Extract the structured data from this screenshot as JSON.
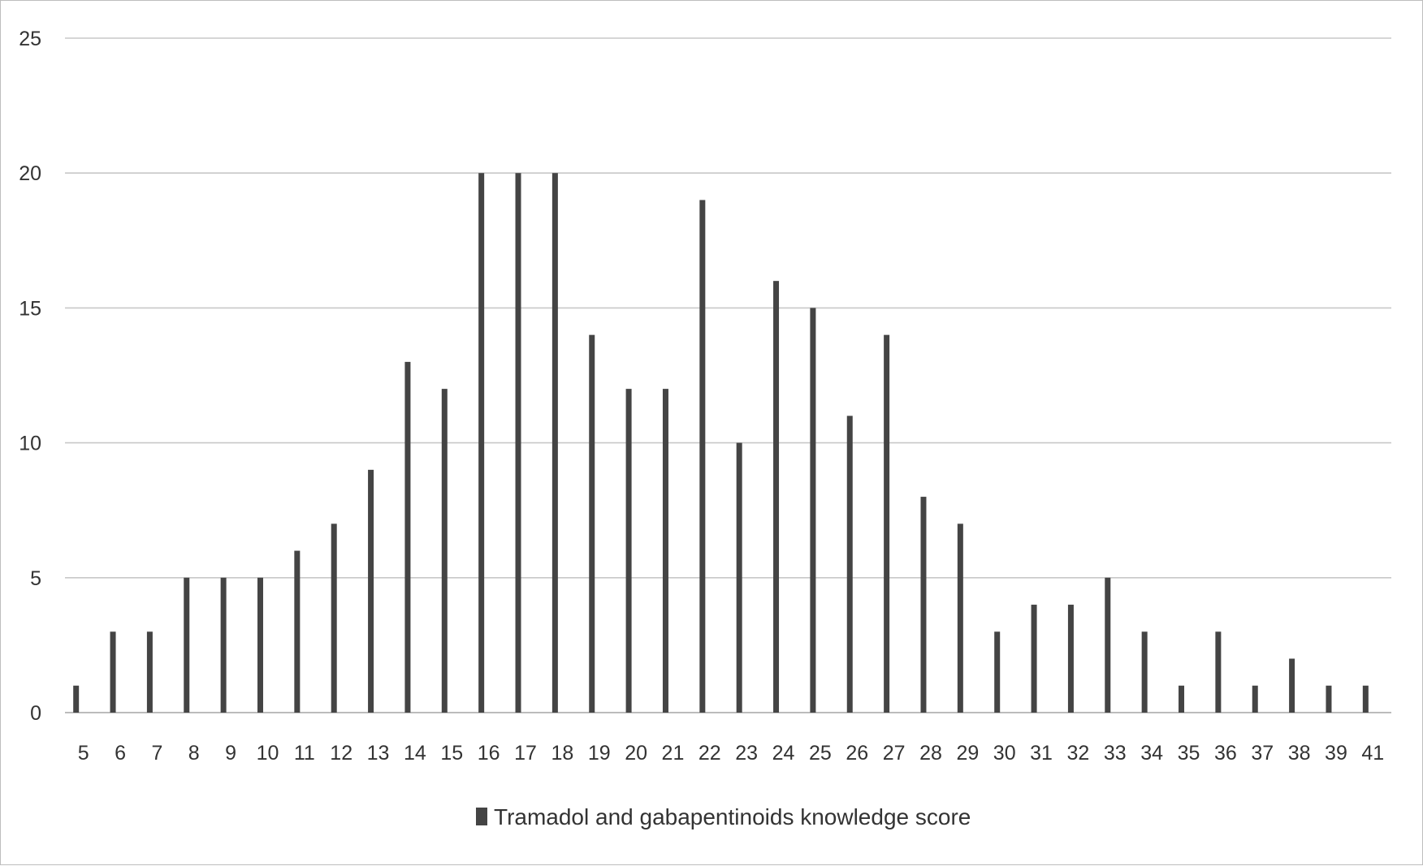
{
  "chart_data": {
    "type": "bar",
    "categories": [
      "5",
      "6",
      "7",
      "8",
      "9",
      "10",
      "11",
      "12",
      "13",
      "14",
      "15",
      "16",
      "17",
      "18",
      "19",
      "20",
      "21",
      "22",
      "23",
      "24",
      "25",
      "26",
      "27",
      "28",
      "29",
      "30",
      "31",
      "32",
      "33",
      "34",
      "35",
      "36",
      "37",
      "38",
      "39",
      "41"
    ],
    "series": [
      {
        "name": "Tramadol and gabapentinoids knowledge score",
        "values": [
          1,
          3,
          3,
          5,
          5,
          5,
          6,
          7,
          9,
          13,
          12,
          20,
          20,
          20,
          14,
          12,
          12,
          19,
          10,
          16,
          15,
          11,
          14,
          8,
          7,
          3,
          4,
          4,
          5,
          3,
          1,
          3,
          1,
          2,
          1,
          1
        ]
      }
    ],
    "yticks": [
      "0",
      "5",
      "10",
      "15",
      "20",
      "25"
    ],
    "ylim": [
      0,
      25
    ],
    "grid": true,
    "legend_position": "bottom",
    "colors": {
      "bar": "#444444",
      "grid": "#c8c8c8",
      "axis": "#a6a6a6"
    }
  }
}
